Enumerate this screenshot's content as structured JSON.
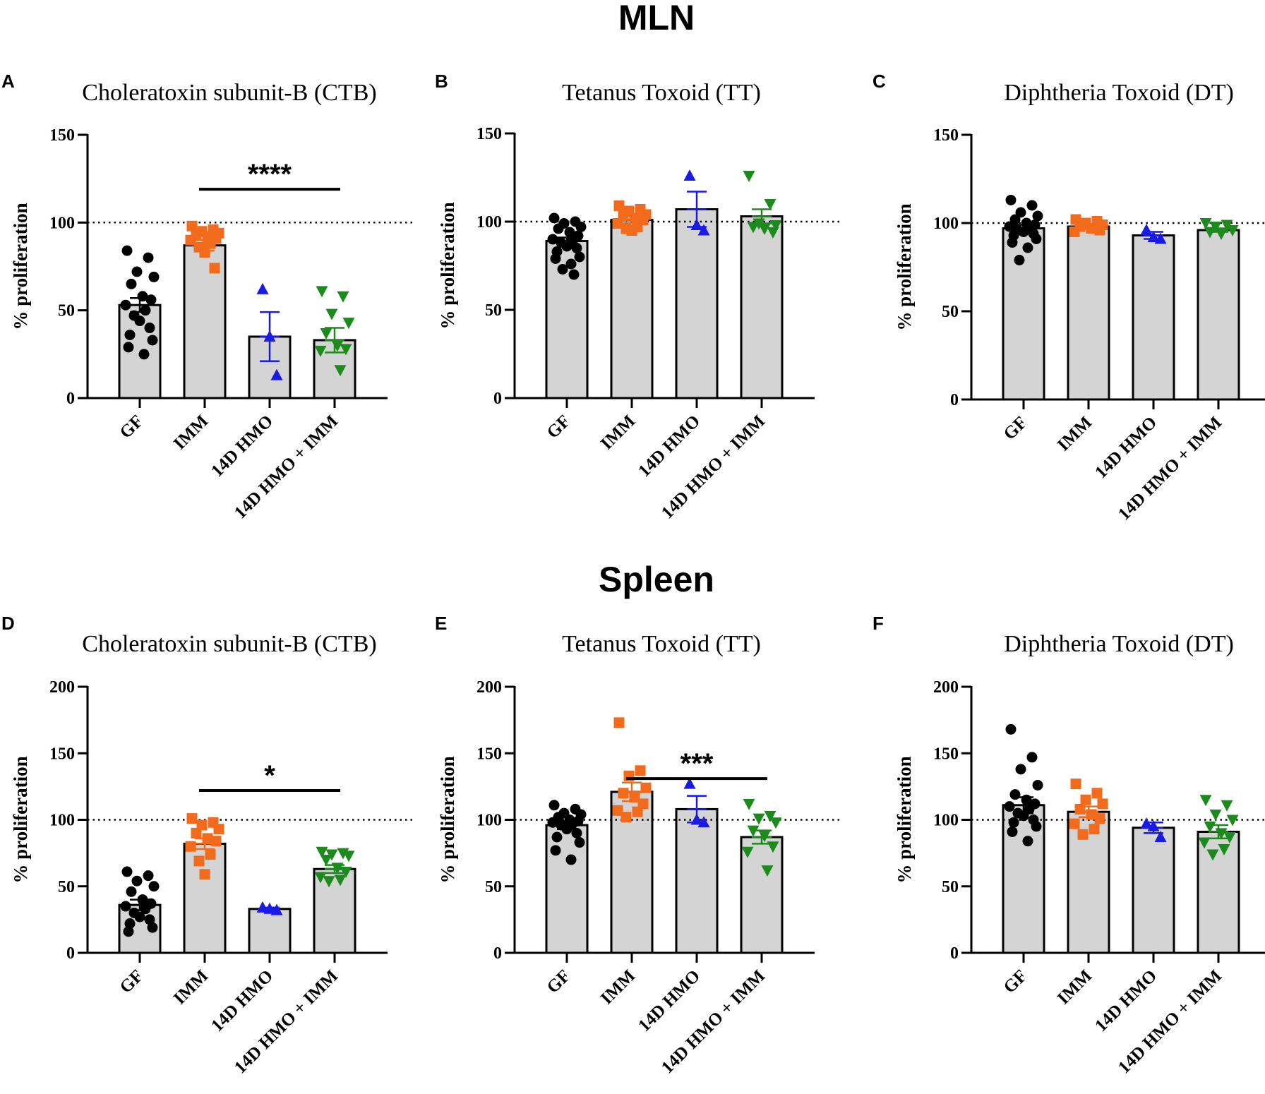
{
  "sections": [
    {
      "title": "MLN"
    },
    {
      "title": "Spleen"
    }
  ],
  "colors": {
    "GF": "#000000",
    "IMM": "#f26a1b",
    "14D HMO": "#1a1ae6",
    "14D HMO + IMM": "#1c8a1c",
    "bar_fill": "#d4d4d4",
    "axis": "#000000"
  },
  "markers": {
    "GF": "circle",
    "IMM": "square",
    "14D HMO": "triangle-up",
    "14D HMO + IMM": "triangle-down"
  },
  "chart_data": [
    {
      "panel": "A",
      "section": "MLN",
      "type": "bar",
      "title": "Choleratoxin subunit-B  (CTB)",
      "ylabel": "% proliferation",
      "ylim": [
        0,
        150
      ],
      "yticks": [
        0,
        50,
        100,
        150
      ],
      "reference_line": 100,
      "categories": [
        "GF",
        "IMM",
        "14D HMO",
        "14D HMO + IMM"
      ],
      "means": [
        53,
        87,
        35,
        33
      ],
      "sem": [
        4,
        3,
        14,
        7
      ],
      "points": [
        [
          84,
          80,
          72,
          69,
          65,
          58,
          56,
          53,
          50,
          47,
          44,
          40,
          36,
          33,
          29,
          25
        ],
        [
          98,
          96,
          95,
          94,
          93,
          92,
          91,
          90,
          88,
          86,
          83,
          74
        ],
        [
          62,
          35,
          13
        ],
        [
          61,
          58,
          48,
          43,
          37,
          30,
          28,
          27,
          16
        ]
      ],
      "significance": {
        "label": "****",
        "from": 1,
        "to": 3,
        "y": 119
      }
    },
    {
      "panel": "B",
      "section": "MLN",
      "type": "bar",
      "title": "Tetanus Toxoid  (TT)",
      "ylabel": "% proliferation",
      "ylim": [
        0,
        150
      ],
      "yticks": [
        0,
        50,
        100,
        150
      ],
      "reference_line": 100,
      "categories": [
        "GF",
        "IMM",
        "14D HMO",
        "14D HMO + IMM"
      ],
      "means": [
        89,
        101,
        107,
        103
      ],
      "sem": [
        2,
        2,
        10,
        4
      ],
      "points": [
        [
          102,
          100,
          99,
          97,
          96,
          94,
          92,
          90,
          89,
          88,
          86,
          85,
          83,
          80,
          79,
          76,
          73,
          70
        ],
        [
          109,
          107,
          106,
          104,
          103,
          102,
          101,
          99,
          97,
          96,
          95
        ],
        [
          126,
          98,
          95
        ],
        [
          126,
          110,
          99,
          98,
          97,
          96,
          94
        ]
      ]
    },
    {
      "panel": "C",
      "section": "MLN",
      "type": "bar",
      "title": "Diphtheria Toxoid (DT)",
      "ylabel": "% proliferation",
      "ylim": [
        0,
        150
      ],
      "yticks": [
        0,
        50,
        100,
        150
      ],
      "reference_line": 100,
      "categories": [
        "GF",
        "IMM",
        "14D HMO",
        "14D HMO + IMM"
      ],
      "means": [
        97,
        98,
        93,
        96
      ],
      "sem": [
        2,
        1,
        2,
        1
      ],
      "points": [
        [
          113,
          110,
          106,
          104,
          102,
          100,
          99,
          98,
          97,
          96,
          95,
          94,
          93,
          91,
          89,
          86,
          79
        ],
        [
          102,
          101,
          100,
          99,
          98,
          97,
          96,
          95
        ],
        [
          96,
          92,
          91
        ],
        [
          100,
          99,
          98,
          96,
          95,
          94
        ]
      ]
    },
    {
      "panel": "D",
      "section": "Spleen",
      "type": "bar",
      "title": "Choleratoxin subunit-B  (CTB)",
      "ylabel": "% proliferation",
      "ylim": [
        0,
        200
      ],
      "yticks": [
        0,
        50,
        100,
        150,
        200
      ],
      "reference_line": 100,
      "categories": [
        "GF",
        "IMM",
        "14D HMO",
        "14D HMO + IMM"
      ],
      "means": [
        36,
        82,
        33,
        63
      ],
      "sem": [
        4,
        4,
        1,
        3
      ],
      "points": [
        [
          61,
          58,
          54,
          50,
          46,
          40,
          37,
          35,
          33,
          30,
          27,
          25,
          22,
          19,
          16
        ],
        [
          101,
          98,
          96,
          93,
          90,
          86,
          84,
          80,
          74,
          69,
          59
        ],
        [
          34,
          33,
          32
        ],
        [
          76,
          75,
          74,
          73,
          70,
          64,
          61,
          57,
          55,
          54
        ]
      ],
      "significance": {
        "label": "*",
        "from": 1,
        "to": 3,
        "y": 122
      }
    },
    {
      "panel": "E",
      "section": "Spleen",
      "type": "bar",
      "title": "Tetanus Toxoid  (TT)",
      "ylabel": "% proliferation",
      "ylim": [
        0,
        200
      ],
      "yticks": [
        0,
        50,
        100,
        150,
        200
      ],
      "reference_line": 100,
      "categories": [
        "GF",
        "IMM",
        "14D HMO",
        "14D HMO + IMM"
      ],
      "means": [
        96,
        121,
        108,
        87
      ],
      "sem": [
        3,
        7,
        10,
        5
      ],
      "points": [
        [
          111,
          108,
          105,
          104,
          102,
          100,
          99,
          98,
          97,
          96,
          93,
          90,
          87,
          83,
          77,
          70
        ],
        [
          173,
          137,
          133,
          124,
          120,
          117,
          112,
          107,
          106,
          102
        ],
        [
          127,
          100,
          98
        ],
        [
          112,
          103,
          101,
          98,
          92,
          88,
          80,
          76,
          62
        ]
      ],
      "significance": {
        "label": "***",
        "from": 1,
        "to": 3,
        "y": 131
      }
    },
    {
      "panel": "F",
      "section": "Spleen",
      "type": "bar",
      "title": "Diphtheria Toxoid (DT)",
      "ylabel": "% proliferation",
      "ylim": [
        0,
        200
      ],
      "yticks": [
        0,
        50,
        100,
        150,
        200
      ],
      "reference_line": 100,
      "categories": [
        "GF",
        "IMM",
        "14D HMO",
        "14D HMO + IMM"
      ],
      "means": [
        111,
        106,
        94,
        91
      ],
      "sem": [
        6,
        4,
        4,
        5
      ],
      "points": [
        [
          168,
          147,
          138,
          126,
          119,
          115,
          112,
          110,
          108,
          105,
          103,
          100,
          98,
          95,
          91,
          84
        ],
        [
          127,
          120,
          115,
          112,
          108,
          104,
          101,
          97,
          93,
          89
        ],
        [
          97,
          95,
          87
        ],
        [
          115,
          111,
          104,
          100,
          95,
          90,
          87,
          83,
          78,
          74
        ]
      ]
    }
  ]
}
